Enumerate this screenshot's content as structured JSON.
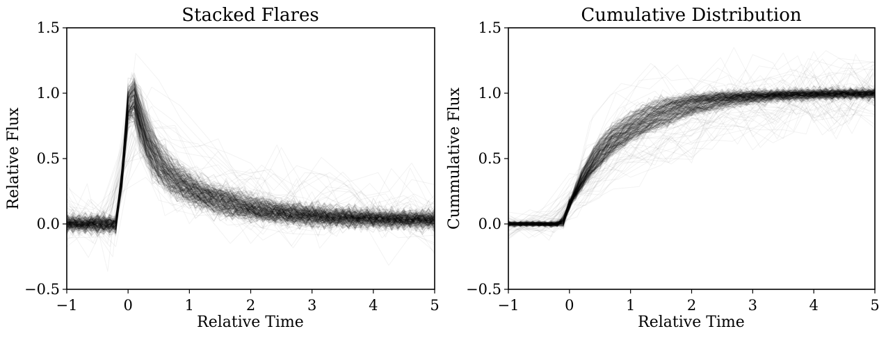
{
  "chart_data": [
    {
      "type": "line",
      "title": "Stacked Flares",
      "xlabel": "Relative Time",
      "ylabel": "Relative Flux",
      "xlim": [
        -1,
        5
      ],
      "ylim": [
        -0.5,
        1.5
      ],
      "xticks": [
        -1,
        0,
        1,
        2,
        3,
        4,
        5
      ],
      "yticks": [
        -0.5,
        0.0,
        0.5,
        1.0,
        1.5
      ],
      "xtick_labels": [
        "−1",
        "0",
        "1",
        "2",
        "3",
        "4",
        "5"
      ],
      "ytick_labels": [
        "−0.5",
        "0.0",
        "0.5",
        "1.0",
        "1.5"
      ],
      "grid": false,
      "legend": "none",
      "line_color": "#000000",
      "description_of_series": "hundreds of overlaid semi-transparent flare light curves",
      "typical_series": {
        "x": [
          -1.0,
          -0.5,
          -0.2,
          -0.1,
          0.0,
          0.05,
          0.1,
          0.2,
          0.3,
          0.5,
          0.75,
          1.0,
          1.5,
          2.0,
          2.5,
          3.0,
          3.5,
          4.0,
          4.5,
          5.0
        ],
        "y": [
          0.0,
          0.0,
          0.0,
          0.35,
          0.9,
          1.0,
          0.95,
          0.78,
          0.62,
          0.45,
          0.33,
          0.26,
          0.17,
          0.11,
          0.08,
          0.06,
          0.045,
          0.035,
          0.03,
          0.025
        ]
      }
    },
    {
      "type": "line",
      "title": "Cumulative Distribution",
      "xlabel": "Relative Time",
      "ylabel": "Cummulative Flux",
      "xlim": [
        -1,
        5
      ],
      "ylim": [
        -0.5,
        1.5
      ],
      "xticks": [
        -1,
        0,
        1,
        2,
        3,
        4,
        5
      ],
      "yticks": [
        -0.5,
        0.0,
        0.5,
        1.0,
        1.5
      ],
      "xtick_labels": [
        "−1",
        "0",
        "1",
        "2",
        "3",
        "4",
        "5"
      ],
      "ytick_labels": [
        "−0.5",
        "0.0",
        "0.5",
        "1.0",
        "1.5"
      ],
      "grid": false,
      "legend": "none",
      "line_color": "#000000",
      "description_of_series": "hundreds of overlaid semi-transparent cumulative flux curves",
      "typical_series": {
        "x": [
          -1.0,
          -0.5,
          -0.2,
          -0.1,
          0.0,
          0.25,
          0.5,
          0.75,
          1.0,
          1.25,
          1.5,
          2.0,
          2.5,
          3.0,
          3.5,
          4.0,
          4.5,
          5.0
        ],
        "y": [
          0.0,
          0.0,
          0.0,
          0.02,
          0.15,
          0.38,
          0.55,
          0.66,
          0.74,
          0.8,
          0.86,
          0.93,
          0.965,
          0.98,
          0.99,
          0.995,
          0.998,
          1.0
        ]
      }
    }
  ]
}
